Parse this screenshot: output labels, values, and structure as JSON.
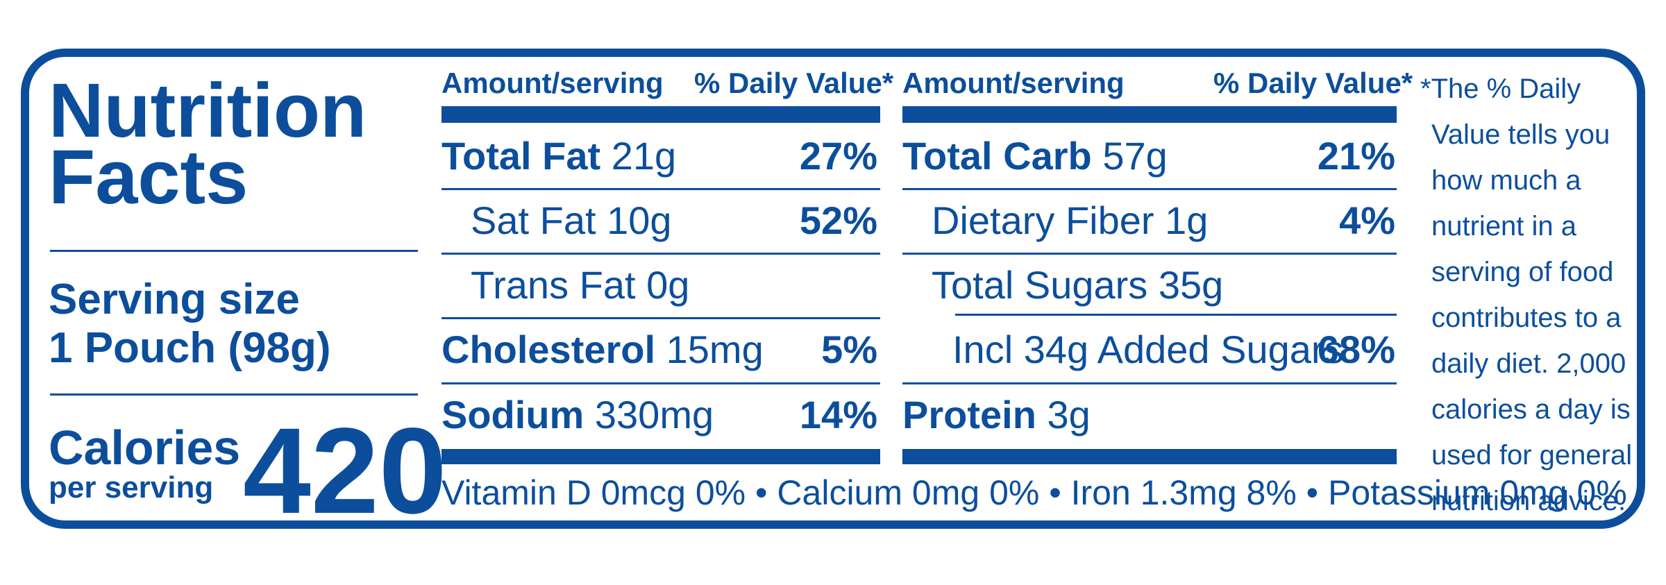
{
  "title": [
    "Nutrition",
    "Facts"
  ],
  "serving": {
    "label": "Serving size",
    "value": "1 Pouch (98g)"
  },
  "calories": {
    "label": "Calories",
    "sub": "per serving",
    "value": "420"
  },
  "headers": {
    "amount": "Amount/serving",
    "daily_value": "% Daily Value*"
  },
  "left_column": [
    {
      "name": "Total Fat",
      "amount": "21g",
      "dv": "27%"
    },
    {
      "name": "Sat Fat",
      "amount": "10g",
      "dv": "52%"
    },
    {
      "name": "Trans Fat",
      "amount": "0g",
      "dv": ""
    },
    {
      "name": "Cholesterol",
      "amount": "15mg",
      "dv": "5%"
    },
    {
      "name": "Sodium",
      "amount": "330mg",
      "dv": "14%"
    }
  ],
  "right_column": [
    {
      "name": "Total Carb",
      "amount": "57g",
      "dv": "21%"
    },
    {
      "name": "Dietary Fiber",
      "amount": "1g",
      "dv": "4%"
    },
    {
      "name": "Total Sugars",
      "amount": "35g",
      "dv": ""
    },
    {
      "name": "Incl 34g Added Sugars",
      "amount": "",
      "dv": "68%"
    },
    {
      "name": "Protein",
      "amount": "3g",
      "dv": ""
    }
  ],
  "vitamins": "Vitamin D 0mcg 0% • Calcium 0mg 0% • Iron 1.3mg 8% • Potassium 0mg 0%",
  "footnote_lines": [
    "*The % Daily",
    "Value tells you",
    "how much a",
    "nutrient in a",
    "serving of food",
    "contributes to a",
    "daily diet. 2,000",
    "calories a day is",
    "used for general",
    "nutrition advice."
  ]
}
